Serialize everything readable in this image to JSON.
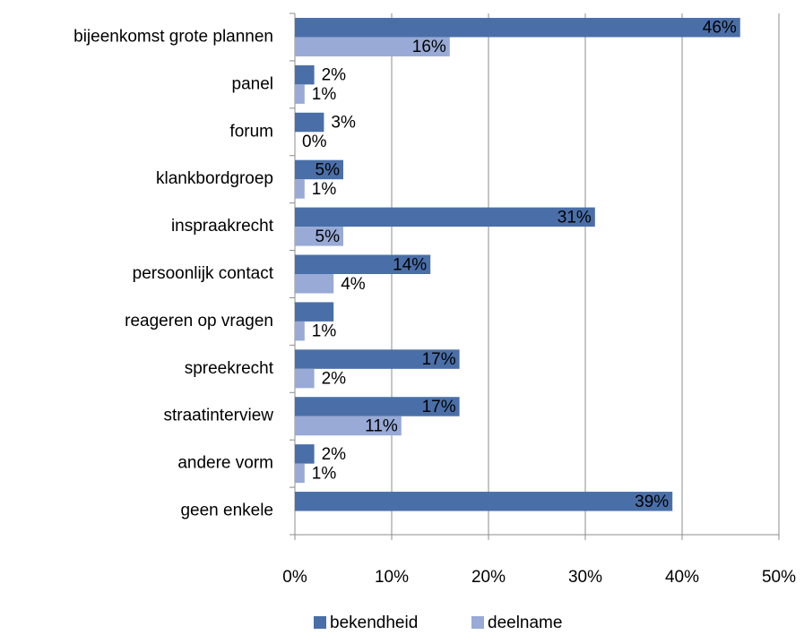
{
  "chart_data": {
    "type": "barh",
    "categories": [
      "bijeenkomst grote plannen",
      "panel",
      "forum",
      "klankbordgroep",
      "inspraakrecht",
      "persoonlijk contact",
      "reageren op vragen",
      "spreekrecht",
      "straatinterview",
      "andere vorm",
      "geen enkele"
    ],
    "series": [
      {
        "name": "bekendheid",
        "color": "#4a6fa8",
        "values": [
          46,
          2,
          3,
          5,
          31,
          14,
          4,
          17,
          17,
          2,
          39
        ],
        "value_labels": [
          "46%",
          "2%",
          "3%",
          "5%",
          "31%",
          "14%",
          null,
          "17%",
          "17%",
          "2%",
          "39%"
        ]
      },
      {
        "name": "deelname",
        "color": "#98aad5",
        "values": [
          16,
          1,
          0,
          1,
          5,
          4,
          1,
          2,
          11,
          1,
          null
        ],
        "value_labels": [
          "16%",
          "1%",
          "0%",
          "1%",
          "5%",
          "4%",
          "1%",
          "2%",
          "11%",
          "1%",
          null
        ]
      }
    ],
    "xlim": [
      0,
      50
    ],
    "xticks": [
      {
        "value": 0,
        "label": "0%"
      },
      {
        "value": 10,
        "label": "10%"
      },
      {
        "value": 20,
        "label": "20%"
      },
      {
        "value": 30,
        "label": "30%"
      },
      {
        "value": 40,
        "label": "40%"
      },
      {
        "value": 50,
        "label": "50%"
      }
    ],
    "grid": true,
    "legend": "bottom"
  }
}
